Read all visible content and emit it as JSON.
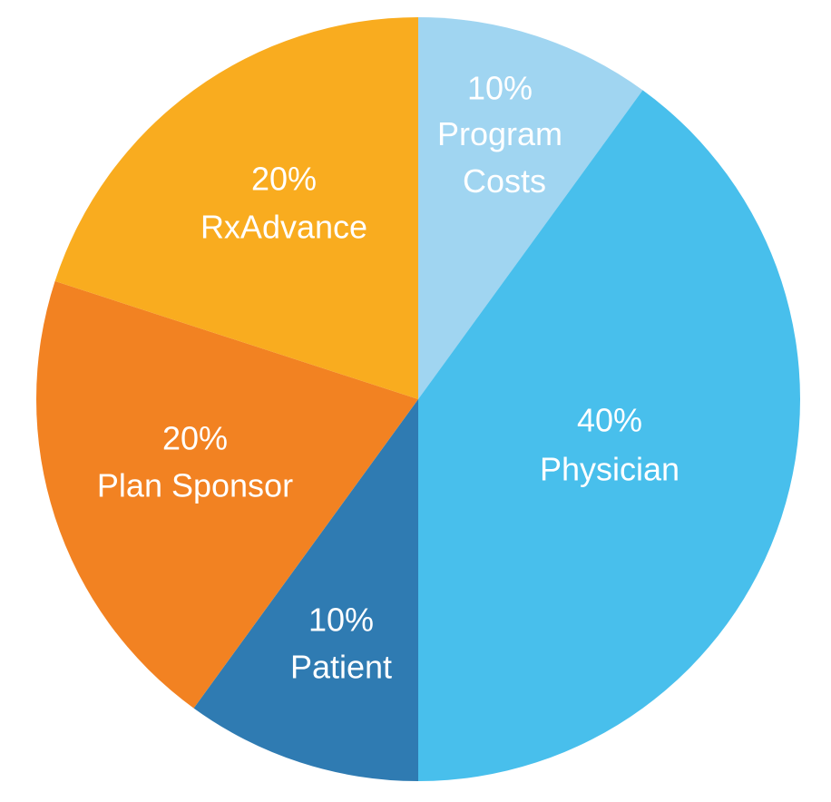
{
  "chart_data": {
    "type": "pie",
    "categories": [
      "Program Costs",
      "Physician",
      "Patient",
      "Plan Sponsor",
      "RxAdvance"
    ],
    "values": [
      10,
      40,
      10,
      20,
      20
    ],
    "value_labels": [
      "10%",
      "40%",
      "10%",
      "20%",
      "20%"
    ],
    "colors": [
      "#a0d5f1",
      "#48bfec",
      "#2f7bb2",
      "#f28222",
      "#f9ac1f"
    ]
  }
}
